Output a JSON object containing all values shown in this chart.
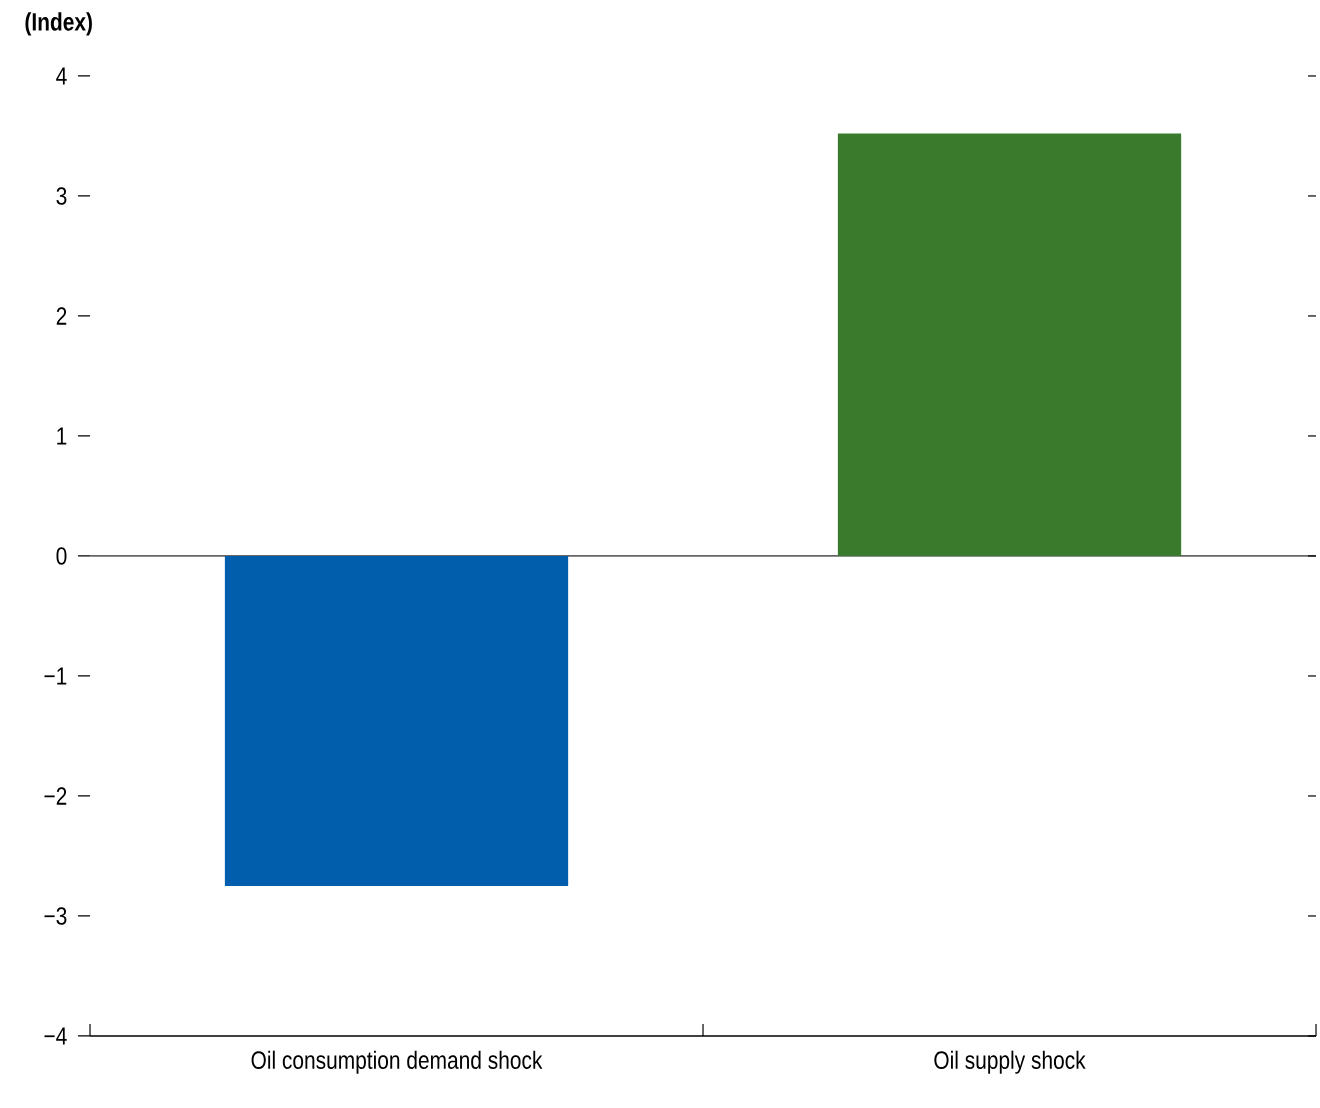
{
  "chart_data": {
    "type": "bar",
    "ylabel": "(Index)",
    "categories": [
      "Oil consumption demand shock",
      "Oil supply shock"
    ],
    "values": [
      -2.75,
      3.52
    ],
    "colors": [
      "#005ead",
      "#3a7a2c"
    ],
    "ylim": [
      -4,
      4
    ],
    "yticks": [
      {
        "value": -4,
        "label": "−4"
      },
      {
        "value": -3,
        "label": "−3"
      },
      {
        "value": -2,
        "label": "−2"
      },
      {
        "value": -1,
        "label": "−1"
      },
      0,
      1,
      2,
      3,
      4
    ]
  }
}
